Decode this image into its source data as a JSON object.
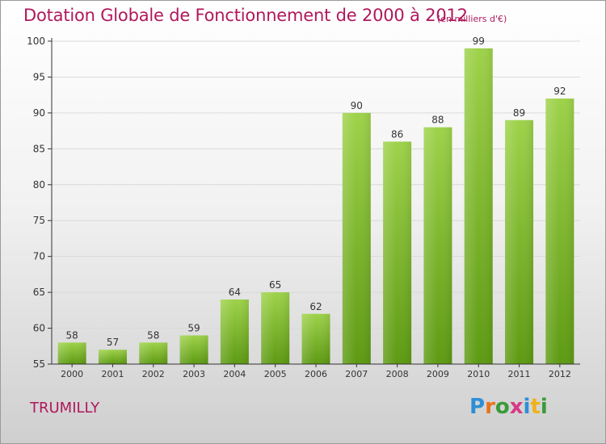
{
  "header": {
    "title": "Dotation Globale de Fonctionnement de 2000 à 2012",
    "subtitle": "(en milliers d'€)"
  },
  "commune": "TRUMILLY",
  "logo": {
    "text": "Proxiti",
    "letter_colors": [
      "#2d8fd5",
      "#e8731c",
      "#3a9a3a",
      "#d63a86",
      "#2d8fd5",
      "#f0b21a",
      "#3a9a3a"
    ]
  },
  "colors": {
    "bar_top": "#9ed24a",
    "bar_bottom": "#5d9a12",
    "accent": "#b0185c",
    "axis": "#333333",
    "grid": "#d9d9d9"
  },
  "chart_data": {
    "type": "bar",
    "categories": [
      "2000",
      "2001",
      "2002",
      "2003",
      "2004",
      "2005",
      "2006",
      "2007",
      "2008",
      "2009",
      "2010",
      "2011",
      "2012"
    ],
    "values": [
      58,
      57,
      58,
      59,
      64,
      65,
      62,
      90,
      86,
      88,
      99,
      89,
      92
    ],
    "title": "Dotation Globale de Fonctionnement de 2000 à 2012",
    "subtitle": "(en milliers d'€)",
    "ylim": [
      55,
      100
    ],
    "yticks": [
      55,
      60,
      65,
      70,
      75,
      80,
      85,
      90,
      95,
      100
    ],
    "grid": true,
    "legend": "none"
  }
}
